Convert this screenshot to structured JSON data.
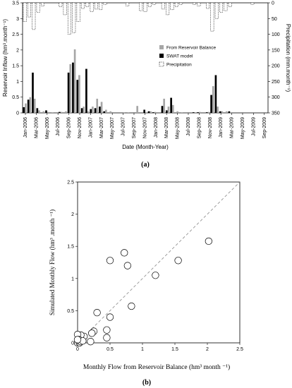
{
  "chart_data": [
    {
      "type": "bar",
      "panel_label": "(a)",
      "xlabel": "Date (Month-Year)",
      "ylabel": "Reservoir Inflow (hm³.month⁻¹)",
      "y2label": "Precipitation (mm.month⁻¹)",
      "ylim": [
        0,
        3.5
      ],
      "y2lim": [
        0,
        350
      ],
      "y2_inverted": true,
      "yticks": [
        "0",
        "0.5",
        "1",
        "1.5",
        "2",
        "2.5",
        "3",
        "3.5"
      ],
      "y2ticks": [
        "0",
        "50",
        "100",
        "150",
        "200",
        "250",
        "300",
        "350"
      ],
      "xtick_labels": [
        "Jan-2006",
        "Mar-2006",
        "May-2006",
        "Jul-2006",
        "Sep-2006",
        "Nov-2006",
        "Jan-2007",
        "Mar-2007",
        "May-2007",
        "Jul-2007",
        "Sep-2007",
        "Nov-2007",
        "Jan-2008",
        "Mar-2008",
        "May-2008",
        "Jul-2008",
        "Sep-2008",
        "Nov-2008",
        "Jan-2009",
        "Mar-2009",
        "May-2009",
        "Jul-2009",
        "Sep-2009"
      ],
      "legend_position": "center-right",
      "series": [
        {
          "name": "From Reservoir Balance",
          "color": "#a6a6a6",
          "values": [
            0.3,
            0.5,
            0.45,
            0.08,
            0.05,
            0.03,
            0.02,
            0.0,
            0.03,
            0.05,
            1.55,
            2.02,
            1.2,
            0.2,
            0.05,
            0.2,
            0.45,
            0.35,
            0.1,
            0.05,
            0.0,
            0.0,
            0.02,
            0.02,
            0.0,
            0.22,
            0.0,
            0.02,
            0.05,
            0.03,
            0.0,
            0.45,
            0.2,
            0.25,
            0.05,
            0.02,
            0.0,
            0.0,
            0.02,
            0.03,
            0.0,
            0.03,
            0.85,
            0.2,
            0.05,
            0.05,
            0.02,
            0.0,
            0.0,
            0.0,
            0.0,
            0.0,
            0.0,
            0.0,
            0.0
          ]
        },
        {
          "name": "SWAT model",
          "color": "#000000",
          "values": [
            0.18,
            0.42,
            1.28,
            0.15,
            0.0,
            0.08,
            0.0,
            0.0,
            0.03,
            0.0,
            1.28,
            1.6,
            1.05,
            0.15,
            1.4,
            0.12,
            0.15,
            0.2,
            0.05,
            0.0,
            0.0,
            0.0,
            0.0,
            0.0,
            0.0,
            0.0,
            0.0,
            0.1,
            0.05,
            0.02,
            0.0,
            0.22,
            0.08,
            0.48,
            0.0,
            0.0,
            0.0,
            0.0,
            0.02,
            0.02,
            0.0,
            0.02,
            0.57,
            1.2,
            0.05,
            0.0,
            0.05,
            0.0,
            0.0,
            0.0,
            0.0,
            0.0,
            0.0,
            0.0,
            0.0
          ]
        },
        {
          "name": "Precipitation",
          "color": "#ffffff",
          "style": "dashed",
          "values": [
            60,
            45,
            85,
            30,
            10,
            0,
            0,
            0,
            12,
            38,
            100,
            95,
            60,
            18,
            12,
            28,
            20,
            22,
            5,
            0,
            0,
            0,
            0,
            10,
            0,
            0,
            25,
            28,
            12,
            5,
            0,
            20,
            38,
            22,
            12,
            5,
            0,
            0,
            5,
            10,
            0,
            18,
            90,
            50,
            30,
            25,
            12,
            0,
            0,
            0,
            0,
            5,
            0,
            0,
            0
          ]
        }
      ]
    },
    {
      "type": "scatter",
      "panel_label": "(b)",
      "xlabel": "Monthly Flow from Reservoir Balance (hm³  month ⁻¹)",
      "ylabel": "Simulated Monthly Flow (hm³ .month ⁻¹)",
      "xlim": [
        0,
        2.5
      ],
      "ylim": [
        0,
        2.5
      ],
      "xticks": [
        "0",
        "0.5",
        "1",
        "1.5",
        "2",
        "2.5"
      ],
      "yticks": [
        "0",
        "0.5",
        "1",
        "1.5",
        "2",
        "2.5"
      ],
      "reference_line": "1:1 dashed",
      "points": [
        {
          "x": 2.02,
          "y": 1.58
        },
        {
          "x": 1.55,
          "y": 1.28
        },
        {
          "x": 1.2,
          "y": 1.05
        },
        {
          "x": 0.5,
          "y": 1.28
        },
        {
          "x": 0.72,
          "y": 1.4
        },
        {
          "x": 0.77,
          "y": 1.2
        },
        {
          "x": 0.83,
          "y": 0.57
        },
        {
          "x": 0.3,
          "y": 0.47
        },
        {
          "x": 0.5,
          "y": 0.4
        },
        {
          "x": 0.45,
          "y": 0.2
        },
        {
          "x": 0.45,
          "y": 0.08
        },
        {
          "x": 0.25,
          "y": 0.18
        },
        {
          "x": 0.22,
          "y": 0.15
        },
        {
          "x": 0.2,
          "y": 0.02
        },
        {
          "x": 0.1,
          "y": 0.1
        },
        {
          "x": 0.05,
          "y": 0.12
        },
        {
          "x": 0.0,
          "y": 0.13
        },
        {
          "x": 0.02,
          "y": 0.05
        },
        {
          "x": 0.0,
          "y": 0.0
        },
        {
          "x": 0.03,
          "y": 0.0
        },
        {
          "x": 0.05,
          "y": 0.02
        },
        {
          "x": 0.08,
          "y": 0.03
        },
        {
          "x": 0.0,
          "y": 0.05
        }
      ]
    }
  ]
}
